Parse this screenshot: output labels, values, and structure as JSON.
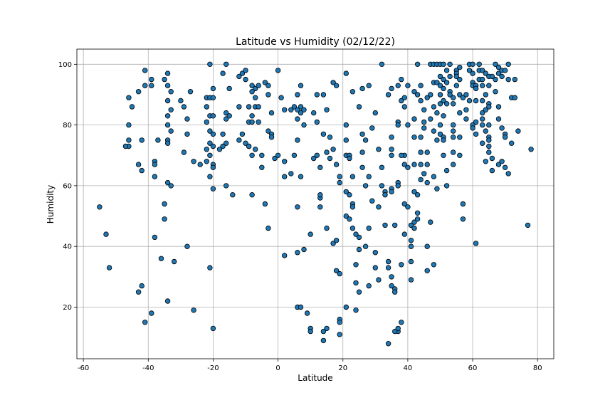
{
  "chart_data": {
    "type": "scatter",
    "title": "Latitude vs Humidity (02/12/22)",
    "xlabel": "Latitude",
    "ylabel": "Humidity",
    "xlim": [
      -62,
      85
    ],
    "ylim": [
      3,
      105
    ],
    "xticks": [
      -60,
      -40,
      -20,
      0,
      20,
      40,
      60,
      80
    ],
    "yticks": [
      20,
      40,
      60,
      80,
      100
    ],
    "grid": true,
    "marker_color": "#1f77b4",
    "marker_edge": "#000000",
    "points": [
      [
        -55,
        53
      ],
      [
        -53,
        44
      ],
      [
        -52,
        33
      ],
      [
        -46,
        89
      ],
      [
        -45,
        86
      ],
      [
        -46,
        80
      ],
      [
        -46,
        75
      ],
      [
        -46,
        73
      ],
      [
        -47,
        73
      ],
      [
        -43,
        91
      ],
      [
        -42,
        75
      ],
      [
        -43,
        67
      ],
      [
        -42,
        65
      ],
      [
        -42,
        27
      ],
      [
        -43,
        25
      ],
      [
        -41,
        15
      ],
      [
        -41,
        98
      ],
      [
        -41,
        93
      ],
      [
        -39,
        93
      ],
      [
        -39,
        95
      ],
      [
        -38,
        68
      ],
      [
        -38,
        67
      ],
      [
        -38,
        63
      ],
      [
        -37,
        75
      ],
      [
        -38,
        43
      ],
      [
        -39,
        18
      ],
      [
        -35,
        95
      ],
      [
        -34,
        93
      ],
      [
        -34,
        97
      ],
      [
        -33,
        91
      ],
      [
        -34,
        88
      ],
      [
        -33,
        85
      ],
      [
        -34,
        83
      ],
      [
        -34,
        80
      ],
      [
        -33,
        78
      ],
      [
        -34,
        75
      ],
      [
        -34,
        74
      ],
      [
        -35,
        54
      ],
      [
        -35,
        49
      ],
      [
        -36,
        36
      ],
      [
        -34,
        61
      ],
      [
        -33,
        60
      ],
      [
        -32,
        35
      ],
      [
        -34,
        22
      ],
      [
        -30,
        88
      ],
      [
        -29,
        86
      ],
      [
        -28,
        82
      ],
      [
        -28,
        77
      ],
      [
        -29,
        71
      ],
      [
        -27,
        91
      ],
      [
        -26,
        68
      ],
      [
        -28,
        40
      ],
      [
        -26,
        19
      ],
      [
        -24,
        67
      ],
      [
        -22,
        89
      ],
      [
        -21,
        89
      ],
      [
        -20,
        89
      ],
      [
        -20,
        92
      ],
      [
        -22,
        86
      ],
      [
        -21,
        83
      ],
      [
        -20,
        83
      ],
      [
        -22,
        81
      ],
      [
        -21,
        78
      ],
      [
        -20,
        77
      ],
      [
        -21,
        74
      ],
      [
        -20,
        73
      ],
      [
        -22,
        72
      ],
      [
        -21,
        70
      ],
      [
        -22,
        68
      ],
      [
        -20,
        67
      ],
      [
        -20,
        66
      ],
      [
        -21,
        63
      ],
      [
        -20,
        59
      ],
      [
        -21,
        33
      ],
      [
        -20,
        13
      ],
      [
        -21,
        100
      ],
      [
        -17,
        97
      ],
      [
        -16,
        100
      ],
      [
        -15,
        92
      ],
      [
        -16,
        84
      ],
      [
        -15,
        83
      ],
      [
        -16,
        82
      ],
      [
        -17,
        77
      ],
      [
        -16,
        74
      ],
      [
        -17,
        73
      ],
      [
        -18,
        72
      ],
      [
        -16,
        60
      ],
      [
        -14,
        57
      ],
      [
        -12,
        96
      ],
      [
        -11,
        97
      ],
      [
        -10,
        98
      ],
      [
        -10,
        95
      ],
      [
        -12,
        86
      ],
      [
        -11,
        77
      ],
      [
        -12,
        75
      ],
      [
        -9,
        73
      ],
      [
        -10,
        74
      ],
      [
        -8,
        93
      ],
      [
        -7,
        92
      ],
      [
        -6,
        93
      ],
      [
        -8,
        91
      ],
      [
        -7,
        89
      ],
      [
        -9,
        86
      ],
      [
        -7,
        86
      ],
      [
        -6,
        86
      ],
      [
        -8,
        83
      ],
      [
        -9,
        81
      ],
      [
        -8,
        81
      ],
      [
        -6,
        81
      ],
      [
        -9,
        73
      ],
      [
        -7,
        72
      ],
      [
        -8,
        70
      ],
      [
        -5,
        70
      ],
      [
        -5,
        66
      ],
      [
        -8,
        57
      ],
      [
        -4,
        54
      ],
      [
        -3,
        46
      ],
      [
        -4,
        94
      ],
      [
        -3,
        93
      ],
      [
        -3,
        90
      ],
      [
        -2,
        84
      ],
      [
        -3,
        78
      ],
      [
        -2,
        77
      ],
      [
        -2,
        76
      ],
      [
        -1,
        69
      ],
      [
        0,
        70
      ],
      [
        0,
        98
      ],
      [
        1,
        89
      ],
      [
        2,
        85
      ],
      [
        2,
        68
      ],
      [
        2,
        63
      ],
      [
        2,
        37
      ],
      [
        4,
        85
      ],
      [
        5,
        86
      ],
      [
        6,
        85
      ],
      [
        7,
        86
      ],
      [
        7,
        84
      ],
      [
        8,
        85
      ],
      [
        6,
        90
      ],
      [
        7,
        93
      ],
      [
        6,
        82
      ],
      [
        8,
        80
      ],
      [
        6,
        75
      ],
      [
        5,
        70
      ],
      [
        4,
        64
      ],
      [
        7,
        63
      ],
      [
        8,
        39
      ],
      [
        6,
        53
      ],
      [
        6,
        38
      ],
      [
        6,
        20
      ],
      [
        7,
        20
      ],
      [
        9,
        18
      ],
      [
        10,
        13
      ],
      [
        10,
        12
      ],
      [
        10,
        44
      ],
      [
        12,
        90
      ],
      [
        11,
        84
      ],
      [
        12,
        81
      ],
      [
        11,
        69
      ],
      [
        12,
        70
      ],
      [
        13,
        56
      ],
      [
        13,
        57
      ],
      [
        13,
        53
      ],
      [
        14,
        90
      ],
      [
        15,
        85
      ],
      [
        14,
        77
      ],
      [
        15,
        71
      ],
      [
        16,
        69
      ],
      [
        16,
        76
      ],
      [
        17,
        94
      ],
      [
        18,
        93
      ],
      [
        17,
        72
      ],
      [
        18,
        67
      ],
      [
        17,
        41
      ],
      [
        18,
        42
      ],
      [
        19,
        63
      ],
      [
        19,
        61
      ],
      [
        18,
        32
      ],
      [
        19,
        31
      ],
      [
        19,
        16
      ],
      [
        19,
        15
      ],
      [
        19,
        11
      ],
      [
        15,
        13
      ],
      [
        14,
        12
      ],
      [
        14,
        9
      ],
      [
        15,
        46
      ],
      [
        13,
        66
      ],
      [
        21,
        97
      ],
      [
        21,
        80
      ],
      [
        21,
        75
      ],
      [
        21,
        70
      ],
      [
        22,
        70
      ],
      [
        22,
        69
      ],
      [
        21,
        58
      ],
      [
        22,
        57
      ],
      [
        21,
        50
      ],
      [
        22,
        49
      ],
      [
        23,
        91
      ],
      [
        23,
        63
      ],
      [
        23,
        54
      ],
      [
        23,
        53
      ],
      [
        23,
        46
      ],
      [
        24,
        44
      ],
      [
        25,
        43
      ],
      [
        25,
        39
      ],
      [
        24,
        34
      ],
      [
        24,
        28
      ],
      [
        25,
        25
      ],
      [
        24,
        19
      ],
      [
        21,
        20
      ],
      [
        25,
        86
      ],
      [
        26,
        92
      ],
      [
        26,
        77
      ],
      [
        27,
        75
      ],
      [
        26,
        71
      ],
      [
        26,
        66
      ],
      [
        28,
        93
      ],
      [
        28,
        63
      ],
      [
        27,
        60
      ],
      [
        28,
        46
      ],
      [
        27,
        40
      ],
      [
        28,
        27
      ],
      [
        29,
        79
      ],
      [
        30,
        84
      ],
      [
        29,
        55
      ],
      [
        30,
        38
      ],
      [
        30,
        33
      ],
      [
        31,
        53
      ],
      [
        31,
        29
      ],
      [
        32,
        100
      ],
      [
        31,
        72
      ],
      [
        32,
        66
      ],
      [
        32,
        60
      ],
      [
        33,
        58
      ],
      [
        33,
        57
      ],
      [
        33,
        47
      ],
      [
        34,
        90
      ],
      [
        34,
        35
      ],
      [
        34,
        33
      ],
      [
        34,
        8
      ],
      [
        35,
        92
      ],
      [
        35,
        76
      ],
      [
        35,
        72
      ],
      [
        35,
        70
      ],
      [
        35,
        59
      ],
      [
        35,
        58
      ],
      [
        35,
        30
      ],
      [
        35,
        27
      ],
      [
        36,
        26
      ],
      [
        36,
        25
      ],
      [
        36,
        47
      ],
      [
        37,
        93
      ],
      [
        37,
        81
      ],
      [
        37,
        80
      ],
      [
        37,
        61
      ],
      [
        37,
        60
      ],
      [
        37,
        12
      ],
      [
        36,
        12
      ],
      [
        37,
        13
      ],
      [
        38,
        15
      ],
      [
        38,
        34
      ],
      [
        38,
        95
      ],
      [
        38,
        88
      ],
      [
        39,
        86
      ],
      [
        39,
        89
      ],
      [
        39,
        70
      ],
      [
        38,
        70
      ],
      [
        39,
        67
      ],
      [
        39,
        54
      ],
      [
        39,
        44
      ],
      [
        40,
        93
      ],
      [
        40,
        80
      ],
      [
        40,
        66
      ],
      [
        40,
        53
      ],
      [
        41,
        42
      ],
      [
        41,
        40
      ],
      [
        41,
        47
      ],
      [
        41,
        35
      ],
      [
        41,
        29
      ],
      [
        42,
        91
      ],
      [
        42,
        82
      ],
      [
        42,
        76
      ],
      [
        42,
        67
      ],
      [
        42,
        58
      ],
      [
        42,
        48
      ],
      [
        42,
        46
      ],
      [
        43,
        100
      ],
      [
        43,
        90
      ],
      [
        44,
        93
      ],
      [
        44,
        88
      ],
      [
        44,
        71
      ],
      [
        44,
        67
      ],
      [
        44,
        62
      ],
      [
        43,
        57
      ],
      [
        43,
        51
      ],
      [
        43,
        49
      ],
      [
        44,
        76
      ],
      [
        45,
        85
      ],
      [
        45,
        81
      ],
      [
        45,
        79
      ],
      [
        45,
        64
      ],
      [
        46,
        89
      ],
      [
        46,
        67
      ],
      [
        46,
        61
      ],
      [
        46,
        40
      ],
      [
        46,
        32
      ],
      [
        46,
        71
      ],
      [
        47,
        100
      ],
      [
        47,
        90
      ],
      [
        47,
        82
      ],
      [
        47,
        48
      ],
      [
        48,
        34
      ],
      [
        48,
        78
      ],
      [
        48,
        63
      ],
      [
        48,
        100
      ],
      [
        49,
        100
      ],
      [
        48,
        94
      ],
      [
        49,
        94
      ],
      [
        48,
        86
      ],
      [
        49,
        84
      ],
      [
        49,
        75
      ],
      [
        49,
        59
      ],
      [
        50,
        100
      ],
      [
        50,
        96
      ],
      [
        50,
        93
      ],
      [
        50,
        90
      ],
      [
        50,
        87
      ],
      [
        50,
        80
      ],
      [
        50,
        77
      ],
      [
        51,
        100
      ],
      [
        51,
        95
      ],
      [
        51,
        92
      ],
      [
        51,
        88
      ],
      [
        51,
        83
      ],
      [
        51,
        76
      ],
      [
        51,
        75
      ],
      [
        51,
        70
      ],
      [
        52,
        98
      ],
      [
        52,
        94
      ],
      [
        52,
        87
      ],
      [
        52,
        60
      ],
      [
        52,
        65
      ],
      [
        53,
        100
      ],
      [
        53,
        96
      ],
      [
        53,
        91
      ],
      [
        53,
        90
      ],
      [
        54,
        89
      ],
      [
        54,
        87
      ],
      [
        54,
        80
      ],
      [
        54,
        78
      ],
      [
        54,
        76
      ],
      [
        54,
        71
      ],
      [
        54,
        67
      ],
      [
        55,
        98
      ],
      [
        55,
        97
      ],
      [
        55,
        93
      ],
      [
        55,
        96
      ],
      [
        56,
        99
      ],
      [
        56,
        95
      ],
      [
        56,
        90
      ],
      [
        56,
        84
      ],
      [
        56,
        76
      ],
      [
        56,
        70
      ],
      [
        57,
        54
      ],
      [
        57,
        49
      ],
      [
        57,
        89
      ],
      [
        58,
        90
      ],
      [
        58,
        85
      ],
      [
        58,
        82
      ],
      [
        59,
        100
      ],
      [
        60,
        100
      ],
      [
        59,
        98
      ],
      [
        60,
        97
      ],
      [
        60,
        94
      ],
      [
        60,
        93
      ],
      [
        59,
        88
      ],
      [
        60,
        80
      ],
      [
        61,
        93
      ],
      [
        61,
        92
      ],
      [
        61,
        88
      ],
      [
        61,
        81
      ],
      [
        61,
        77
      ],
      [
        60,
        79
      ],
      [
        61,
        41
      ],
      [
        62,
        100
      ],
      [
        62,
        98
      ],
      [
        62,
        95
      ],
      [
        63,
        98
      ],
      [
        63,
        95
      ],
      [
        63,
        93
      ],
      [
        63,
        88
      ],
      [
        63,
        84
      ],
      [
        63,
        82
      ],
      [
        63,
        80
      ],
      [
        63,
        74
      ],
      [
        64,
        97
      ],
      [
        64,
        90
      ],
      [
        64,
        85
      ],
      [
        64,
        78
      ],
      [
        64,
        68
      ],
      [
        65,
        96
      ],
      [
        65,
        93
      ],
      [
        65,
        87
      ],
      [
        65,
        86
      ],
      [
        65,
        80
      ],
      [
        65,
        76
      ],
      [
        65,
        75
      ],
      [
        65,
        73
      ],
      [
        65,
        71
      ],
      [
        66,
        65
      ],
      [
        66,
        69
      ],
      [
        66,
        96
      ],
      [
        67,
        95
      ],
      [
        67,
        100
      ],
      [
        68,
        97
      ],
      [
        68,
        99
      ],
      [
        67,
        91
      ],
      [
        68,
        86
      ],
      [
        68,
        82
      ],
      [
        68,
        67
      ],
      [
        69,
        98
      ],
      [
        69,
        96
      ],
      [
        69,
        79
      ],
      [
        69,
        68
      ],
      [
        70,
        98
      ],
      [
        70,
        77
      ],
      [
        70,
        76
      ],
      [
        70,
        66
      ],
      [
        71,
        100
      ],
      [
        71,
        95
      ],
      [
        71,
        64
      ],
      [
        72,
        89
      ],
      [
        72,
        74
      ],
      [
        73,
        95
      ],
      [
        73,
        89
      ],
      [
        74,
        78
      ],
      [
        77,
        47
      ],
      [
        78,
        72
      ]
    ]
  }
}
